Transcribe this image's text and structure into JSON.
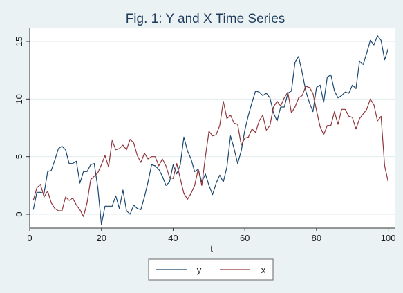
{
  "chart_data": {
    "type": "line",
    "title": "Fig. 1: Y and X Time Series",
    "xlabel": "t",
    "ylabel": "",
    "xlim": [
      0,
      102
    ],
    "ylim": [
      -1.2,
      16.2
    ],
    "x_ticks": [
      0,
      20,
      40,
      60,
      80,
      100
    ],
    "y_ticks": [
      0,
      5,
      10,
      15
    ],
    "grid": true,
    "legend_position": "bottom",
    "x": [
      1,
      2,
      3,
      4,
      5,
      6,
      7,
      8,
      9,
      10,
      11,
      12,
      13,
      14,
      15,
      16,
      17,
      18,
      19,
      20,
      21,
      22,
      23,
      24,
      25,
      26,
      27,
      28,
      29,
      30,
      31,
      32,
      33,
      34,
      35,
      36,
      37,
      38,
      39,
      40,
      41,
      42,
      43,
      44,
      45,
      46,
      47,
      48,
      49,
      50,
      51,
      52,
      53,
      54,
      55,
      56,
      57,
      58,
      59,
      60,
      61,
      62,
      63,
      64,
      65,
      66,
      67,
      68,
      69,
      70,
      71,
      72,
      73,
      74,
      75,
      76,
      77,
      78,
      79,
      80,
      81,
      82,
      83,
      84,
      85,
      86,
      87,
      88,
      89,
      90,
      91,
      92,
      93,
      94,
      95,
      96,
      97,
      98,
      99,
      100
    ],
    "series": [
      {
        "name": "y",
        "color": "#1a476f",
        "values": [
          0.4,
          1.9,
          1.9,
          1.8,
          3.7,
          3.8,
          4.7,
          5.7,
          5.9,
          5.6,
          4.4,
          4.4,
          4.6,
          2.7,
          3.7,
          3.7,
          4.3,
          4.4,
          2.3,
          -0.9,
          0.7,
          0.7,
          0.7,
          1.6,
          0.5,
          2.1,
          0.3,
          0.0,
          0.8,
          0.5,
          0.4,
          1.5,
          2.8,
          4.3,
          4.2,
          3.9,
          3.3,
          2.5,
          2.8,
          4.3,
          3.5,
          4.3,
          6.7,
          5.5,
          4.8,
          3.7,
          3.9,
          2.8,
          3.5,
          2.5,
          1.7,
          2.7,
          3.4,
          2.8,
          4.1,
          6.8,
          5.7,
          4.4,
          5.5,
          7.3,
          8.6,
          9.7,
          10.7,
          10.6,
          10.3,
          10.5,
          10.1,
          8.8,
          8.1,
          9.3,
          9.3,
          10.5,
          10.7,
          13.2,
          13.7,
          12.3,
          10.7,
          9.7,
          8.9,
          11.0,
          11.2,
          9.7,
          11.9,
          12.1,
          10.7,
          10.1,
          10.3,
          10.6,
          10.5,
          11.2,
          10.9,
          13.3,
          13.0,
          14.0,
          15.1,
          14.7,
          15.5,
          15.1,
          13.4,
          14.4
        ]
      },
      {
        "name": "x",
        "color": "#90353b",
        "values": [
          1.2,
          2.3,
          2.6,
          1.5,
          2.0,
          1.0,
          0.5,
          0.3,
          0.3,
          1.5,
          1.2,
          1.4,
          0.8,
          0.4,
          -0.2,
          1.0,
          3.0,
          3.3,
          3.6,
          4.3,
          5.1,
          4.1,
          6.4,
          5.6,
          5.7,
          6.0,
          5.6,
          6.5,
          6.2,
          5.1,
          4.5,
          5.3,
          4.8,
          5.0,
          5.0,
          4.2,
          4.8,
          4.2,
          3.2,
          3.1,
          4.4,
          3.1,
          1.8,
          1.3,
          1.8,
          2.5,
          3.9,
          2.5,
          5.0,
          7.2,
          6.8,
          6.9,
          7.7,
          9.8,
          8.3,
          8.6,
          7.9,
          7.8,
          6.0,
          6.6,
          6.7,
          7.4,
          7.1,
          8.1,
          8.6,
          7.3,
          7.7,
          9.3,
          9.8,
          9.4,
          10.1,
          10.6,
          8.8,
          9.3,
          10.1,
          10.3,
          11.1,
          11.0,
          10.5,
          9.0,
          7.6,
          6.9,
          7.7,
          7.7,
          8.9,
          7.8,
          9.1,
          9.1,
          8.5,
          8.4,
          7.4,
          8.3,
          8.7,
          9.1,
          10.0,
          9.5,
          8.1,
          8.5,
          4.2,
          2.8
        ]
      }
    ]
  }
}
